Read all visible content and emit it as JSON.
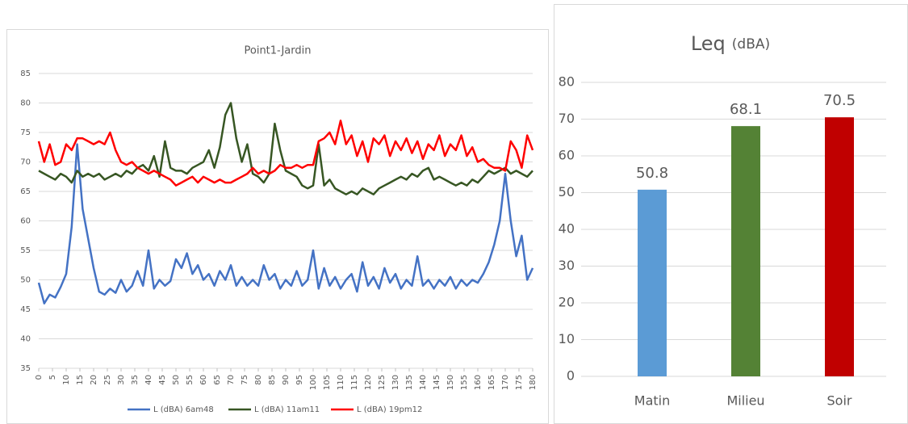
{
  "chart_data": [
    {
      "type": "line",
      "title": "Point1-Jardin",
      "x": [
        0,
        2,
        4,
        6,
        8,
        10,
        12,
        14,
        16,
        18,
        20,
        22,
        24,
        26,
        28,
        30,
        32,
        34,
        36,
        38,
        40,
        42,
        44,
        46,
        48,
        50,
        52,
        54,
        56,
        58,
        60,
        62,
        64,
        66,
        68,
        70,
        72,
        74,
        76,
        78,
        80,
        82,
        84,
        86,
        88,
        90,
        92,
        94,
        96,
        98,
        100,
        102,
        104,
        106,
        108,
        110,
        112,
        114,
        116,
        118,
        120,
        122,
        124,
        126,
        128,
        130,
        132,
        134,
        136,
        138,
        140,
        142,
        144,
        146,
        148,
        150,
        152,
        154,
        156,
        158,
        160,
        162,
        164,
        166,
        168,
        170,
        172,
        174,
        176,
        178,
        180
      ],
      "series": [
        {
          "name": "L (dBA) 6am48",
          "color": "#4472c4",
          "values": [
            49.5,
            46,
            47.5,
            47,
            48.8,
            51,
            59,
            73,
            62,
            57,
            52,
            48,
            47.5,
            48.5,
            47.8,
            50,
            48,
            49,
            51.5,
            49,
            55,
            48.5,
            50,
            49,
            49.8,
            53.5,
            52,
            54.5,
            51,
            52.5,
            50,
            51,
            49,
            51.5,
            50,
            52.5,
            49,
            50.5,
            49,
            50,
            49,
            52.5,
            50,
            51,
            48.5,
            50,
            49,
            51.5,
            49,
            50,
            55,
            48.5,
            52,
            49,
            50.5,
            48.5,
            50,
            51,
            48,
            53,
            49,
            50.5,
            48.5,
            52,
            49.5,
            51,
            48.5,
            50,
            49,
            54,
            49,
            50,
            48.5,
            50,
            49,
            50.5,
            48.5,
            50,
            49,
            50,
            49.5,
            51,
            53,
            56,
            60,
            68,
            60,
            54,
            57.5,
            50,
            52
          ]
        },
        {
          "name": "L (dBA) 11am11",
          "color": "#375623",
          "values": [
            68.5,
            68,
            67.5,
            67,
            68,
            67.5,
            66.5,
            68.5,
            67.5,
            68,
            67.5,
            68,
            67,
            67.5,
            68,
            67.5,
            68.5,
            68,
            69,
            69.5,
            68.5,
            71,
            67.5,
            73.5,
            69,
            68.5,
            68.5,
            68,
            69,
            69.5,
            70,
            72,
            69,
            72.5,
            78,
            80,
            74,
            70,
            73,
            68,
            67.5,
            66.5,
            68,
            76.5,
            72,
            68.5,
            68,
            67.5,
            66,
            65.5,
            66,
            73,
            66,
            67,
            65.5,
            65,
            64.5,
            65,
            64.5,
            65.5,
            65,
            64.5,
            65.5,
            66,
            66.5,
            67,
            67.5,
            67,
            68,
            67.5,
            68.5,
            69,
            67,
            67.5,
            67,
            66.5,
            66,
            66.5,
            66,
            67,
            66.5,
            67.5,
            68.5,
            68,
            68.5,
            69,
            68,
            68.5,
            68,
            67.5,
            68.5
          ]
        },
        {
          "name": "L (dBA) 19pm12",
          "color": "#ff0000",
          "values": [
            73.5,
            70,
            73,
            69.5,
            70,
            73,
            72,
            74,
            74,
            73.5,
            73,
            73.5,
            73,
            75,
            72,
            70,
            69.5,
            70,
            69,
            68.5,
            68,
            68.5,
            68,
            67.5,
            67,
            66,
            66.5,
            67,
            67.5,
            66.5,
            67.5,
            67,
            66.5,
            67,
            66.5,
            66.5,
            67,
            67.5,
            68,
            69,
            68,
            68.5,
            68,
            68.5,
            69.5,
            69,
            69,
            69.5,
            69,
            69.5,
            69.5,
            73.5,
            74,
            75,
            73,
            77,
            73,
            74.5,
            71,
            73.5,
            70,
            74,
            73,
            74.5,
            71,
            73.5,
            72,
            74,
            71.5,
            73.5,
            70.5,
            73,
            72,
            74.5,
            71,
            73,
            72,
            74.5,
            71,
            72.5,
            70,
            70.5,
            69.5,
            69,
            69,
            68.5,
            73.5,
            72,
            69,
            74.5,
            72
          ]
        }
      ],
      "xlim": [
        0,
        180
      ],
      "xticks": [
        0,
        5,
        10,
        15,
        20,
        25,
        30,
        35,
        40,
        45,
        50,
        55,
        60,
        65,
        70,
        75,
        80,
        85,
        90,
        95,
        100,
        105,
        110,
        115,
        120,
        125,
        130,
        135,
        140,
        145,
        150,
        155,
        160,
        165,
        170,
        175,
        180
      ],
      "ylim": [
        35,
        85
      ],
      "yticks": [
        35,
        40,
        45,
        50,
        55,
        60,
        65,
        70,
        75,
        80,
        85
      ],
      "grid": true,
      "legend": "bottom"
    },
    {
      "type": "bar",
      "title": "Leq",
      "subtitle": "(dBA)",
      "categories": [
        "Matin",
        "Milieu",
        "Soir"
      ],
      "values": [
        50.8,
        68.1,
        70.5
      ],
      "colors": [
        "#5b9bd5",
        "#548235",
        "#c00000"
      ],
      "ylim": [
        0,
        80
      ],
      "yticks": [
        0,
        10,
        20,
        30,
        40,
        50,
        60,
        70,
        80
      ],
      "grid": true
    }
  ]
}
